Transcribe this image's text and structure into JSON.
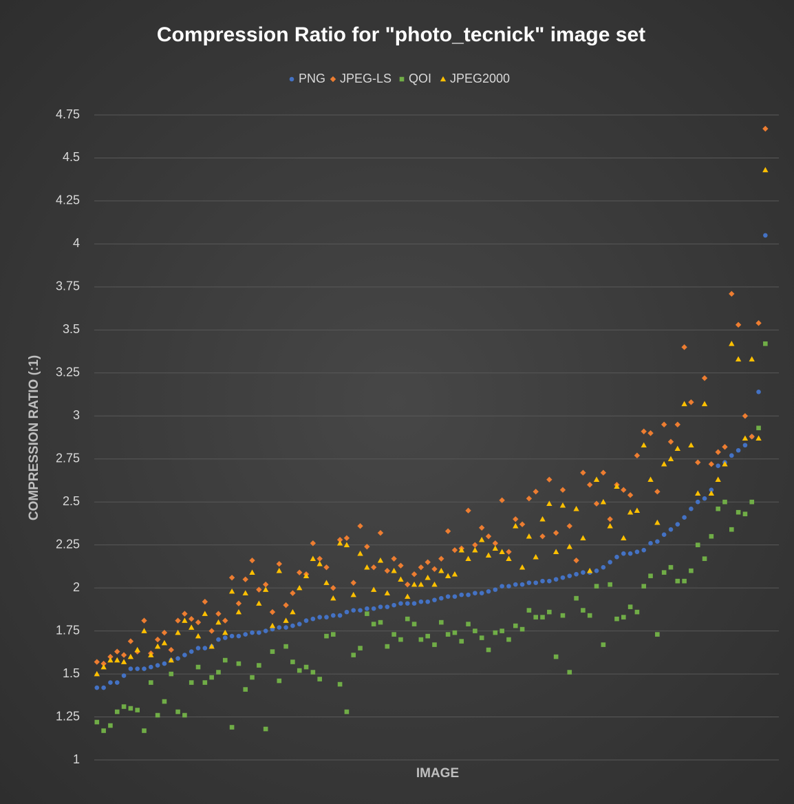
{
  "chart_data": {
    "type": "scatter",
    "title": "Compression Ratio for \"photo_tecnick\" image set",
    "x_label": "IMAGE",
    "y_label": "COMPRESSION RATIO (:1)",
    "legend": "top",
    "grid": true,
    "xlim": [
      0,
      102
    ],
    "ylim": [
      1,
      4.75
    ],
    "yticks": [
      1,
      1.25,
      1.5,
      1.75,
      2,
      2.25,
      2.5,
      2.75,
      3,
      3.25,
      3.5,
      3.75,
      4,
      4.25,
      4.5,
      4.75
    ],
    "x": [
      1,
      2,
      3,
      4,
      5,
      6,
      7,
      8,
      9,
      10,
      11,
      12,
      13,
      14,
      15,
      16,
      17,
      18,
      19,
      20,
      21,
      22,
      23,
      24,
      25,
      26,
      27,
      28,
      29,
      30,
      31,
      32,
      33,
      34,
      35,
      36,
      37,
      38,
      39,
      40,
      41,
      42,
      43,
      44,
      45,
      46,
      47,
      48,
      49,
      50,
      51,
      52,
      53,
      54,
      55,
      56,
      57,
      58,
      59,
      60,
      61,
      62,
      63,
      64,
      65,
      66,
      67,
      68,
      69,
      70,
      71,
      72,
      73,
      74,
      75,
      76,
      77,
      78,
      79,
      80,
      81,
      82,
      83,
      84,
      85,
      86,
      87,
      88,
      89,
      90,
      91,
      92,
      93,
      94,
      95,
      96,
      97,
      98,
      99,
      100
    ],
    "series": [
      {
        "name": "PNG",
        "color": "#4472c4",
        "marker": "circle",
        "values": [
          1.42,
          1.42,
          1.45,
          1.45,
          1.49,
          1.53,
          1.53,
          1.53,
          1.54,
          1.55,
          1.56,
          1.58,
          1.59,
          1.61,
          1.63,
          1.65,
          1.65,
          1.66,
          1.7,
          1.71,
          1.72,
          1.72,
          1.73,
          1.74,
          1.74,
          1.75,
          1.76,
          1.77,
          1.77,
          1.78,
          1.79,
          1.81,
          1.82,
          1.83,
          1.83,
          1.84,
          1.84,
          1.86,
          1.87,
          1.87,
          1.88,
          1.88,
          1.89,
          1.89,
          1.9,
          1.91,
          1.91,
          1.91,
          1.92,
          1.92,
          1.93,
          1.94,
          1.95,
          1.95,
          1.96,
          1.96,
          1.97,
          1.97,
          1.98,
          1.99,
          2.01,
          2.01,
          2.02,
          2.02,
          2.03,
          2.03,
          2.04,
          2.04,
          2.05,
          2.06,
          2.07,
          2.08,
          2.09,
          2.09,
          2.1,
          2.12,
          2.15,
          2.18,
          2.2,
          2.2,
          2.21,
          2.22,
          2.26,
          2.27,
          2.31,
          2.34,
          2.37,
          2.41,
          2.46,
          2.5,
          2.52,
          2.57,
          2.71,
          2.73,
          2.77,
          2.8,
          2.83,
          2.88,
          3.14,
          4.05
        ]
      },
      {
        "name": "JPEG-LS",
        "color": "#ed7d31",
        "marker": "diamond",
        "values": [
          1.57,
          1.56,
          1.6,
          1.63,
          1.61,
          1.69,
          1.63,
          1.81,
          1.62,
          1.7,
          1.74,
          1.64,
          1.81,
          1.85,
          1.82,
          1.8,
          1.92,
          1.75,
          1.85,
          1.81,
          2.06,
          1.91,
          2.05,
          2.16,
          1.99,
          2.02,
          1.86,
          2.14,
          1.9,
          1.97,
          2.09,
          2.08,
          2.26,
          2.17,
          2.12,
          2.0,
          2.28,
          2.29,
          2.03,
          2.36,
          2.24,
          2.12,
          2.32,
          2.1,
          2.17,
          2.13,
          2.02,
          2.08,
          2.12,
          2.15,
          2.11,
          2.17,
          2.33,
          2.22,
          2.23,
          2.45,
          2.25,
          2.35,
          2.3,
          2.26,
          2.51,
          2.21,
          2.4,
          2.37,
          2.52,
          2.56,
          2.3,
          2.63,
          2.32,
          2.57,
          2.36,
          2.16,
          2.67,
          2.6,
          2.49,
          2.67,
          2.4,
          2.6,
          2.57,
          2.54,
          2.77,
          2.91,
          2.9,
          2.56,
          2.95,
          2.85,
          2.95,
          3.4,
          3.08,
          2.73,
          3.22,
          2.72,
          2.79,
          2.82,
          3.71,
          3.53,
          3.0,
          2.88,
          3.54,
          4.67
        ]
      },
      {
        "name": "QOI",
        "color": "#70ad47",
        "marker": "square",
        "values": [
          1.22,
          1.17,
          1.2,
          1.28,
          1.31,
          1.3,
          1.29,
          1.17,
          1.45,
          1.26,
          1.34,
          1.5,
          1.28,
          1.26,
          1.45,
          1.54,
          1.45,
          1.48,
          1.51,
          1.58,
          1.19,
          1.56,
          1.41,
          1.48,
          1.55,
          1.18,
          1.63,
          1.46,
          1.66,
          1.57,
          1.52,
          1.54,
          1.51,
          1.47,
          1.72,
          1.73,
          1.44,
          1.28,
          1.61,
          1.65,
          1.85,
          1.79,
          1.8,
          1.66,
          1.73,
          1.7,
          1.82,
          1.79,
          1.7,
          1.72,
          1.67,
          1.8,
          1.73,
          1.74,
          1.69,
          1.79,
          1.75,
          1.71,
          1.64,
          1.74,
          1.75,
          1.7,
          1.78,
          1.76,
          1.87,
          1.83,
          1.83,
          1.86,
          1.6,
          1.84,
          1.51,
          1.94,
          1.87,
          1.84,
          2.01,
          1.67,
          2.02,
          1.82,
          1.83,
          1.89,
          1.86,
          2.01,
          2.07,
          1.73,
          2.09,
          2.12,
          2.04,
          2.04,
          2.1,
          2.25,
          2.17,
          2.3,
          2.46,
          2.5,
          2.34,
          2.44,
          2.43,
          2.5,
          2.93,
          3.42
        ]
      },
      {
        "name": "JPEG2000",
        "color": "#ffc000",
        "marker": "triangle",
        "values": [
          1.5,
          1.54,
          1.58,
          1.58,
          1.57,
          1.6,
          1.64,
          1.75,
          1.61,
          1.66,
          1.68,
          1.58,
          1.74,
          1.81,
          1.77,
          1.72,
          1.85,
          1.66,
          1.8,
          1.74,
          1.98,
          1.86,
          1.97,
          2.09,
          1.91,
          1.99,
          1.78,
          2.1,
          1.81,
          1.86,
          2.0,
          2.07,
          2.17,
          2.14,
          2.03,
          1.94,
          2.26,
          2.25,
          1.96,
          2.2,
          2.12,
          1.99,
          2.16,
          1.97,
          2.1,
          2.05,
          1.95,
          2.02,
          2.02,
          2.06,
          2.02,
          2.1,
          2.07,
          2.08,
          2.22,
          2.17,
          2.22,
          2.28,
          2.19,
          2.23,
          2.21,
          2.17,
          2.36,
          2.12,
          2.3,
          2.18,
          2.4,
          2.49,
          2.21,
          2.48,
          2.24,
          2.46,
          2.29,
          2.1,
          2.63,
          2.5,
          2.36,
          2.59,
          2.29,
          2.44,
          2.45,
          2.83,
          2.63,
          2.38,
          2.72,
          2.75,
          2.81,
          3.07,
          2.83,
          2.55,
          3.07,
          2.55,
          2.63,
          2.72,
          3.42,
          3.33,
          2.87,
          3.33,
          2.87,
          4.43
        ]
      }
    ]
  }
}
